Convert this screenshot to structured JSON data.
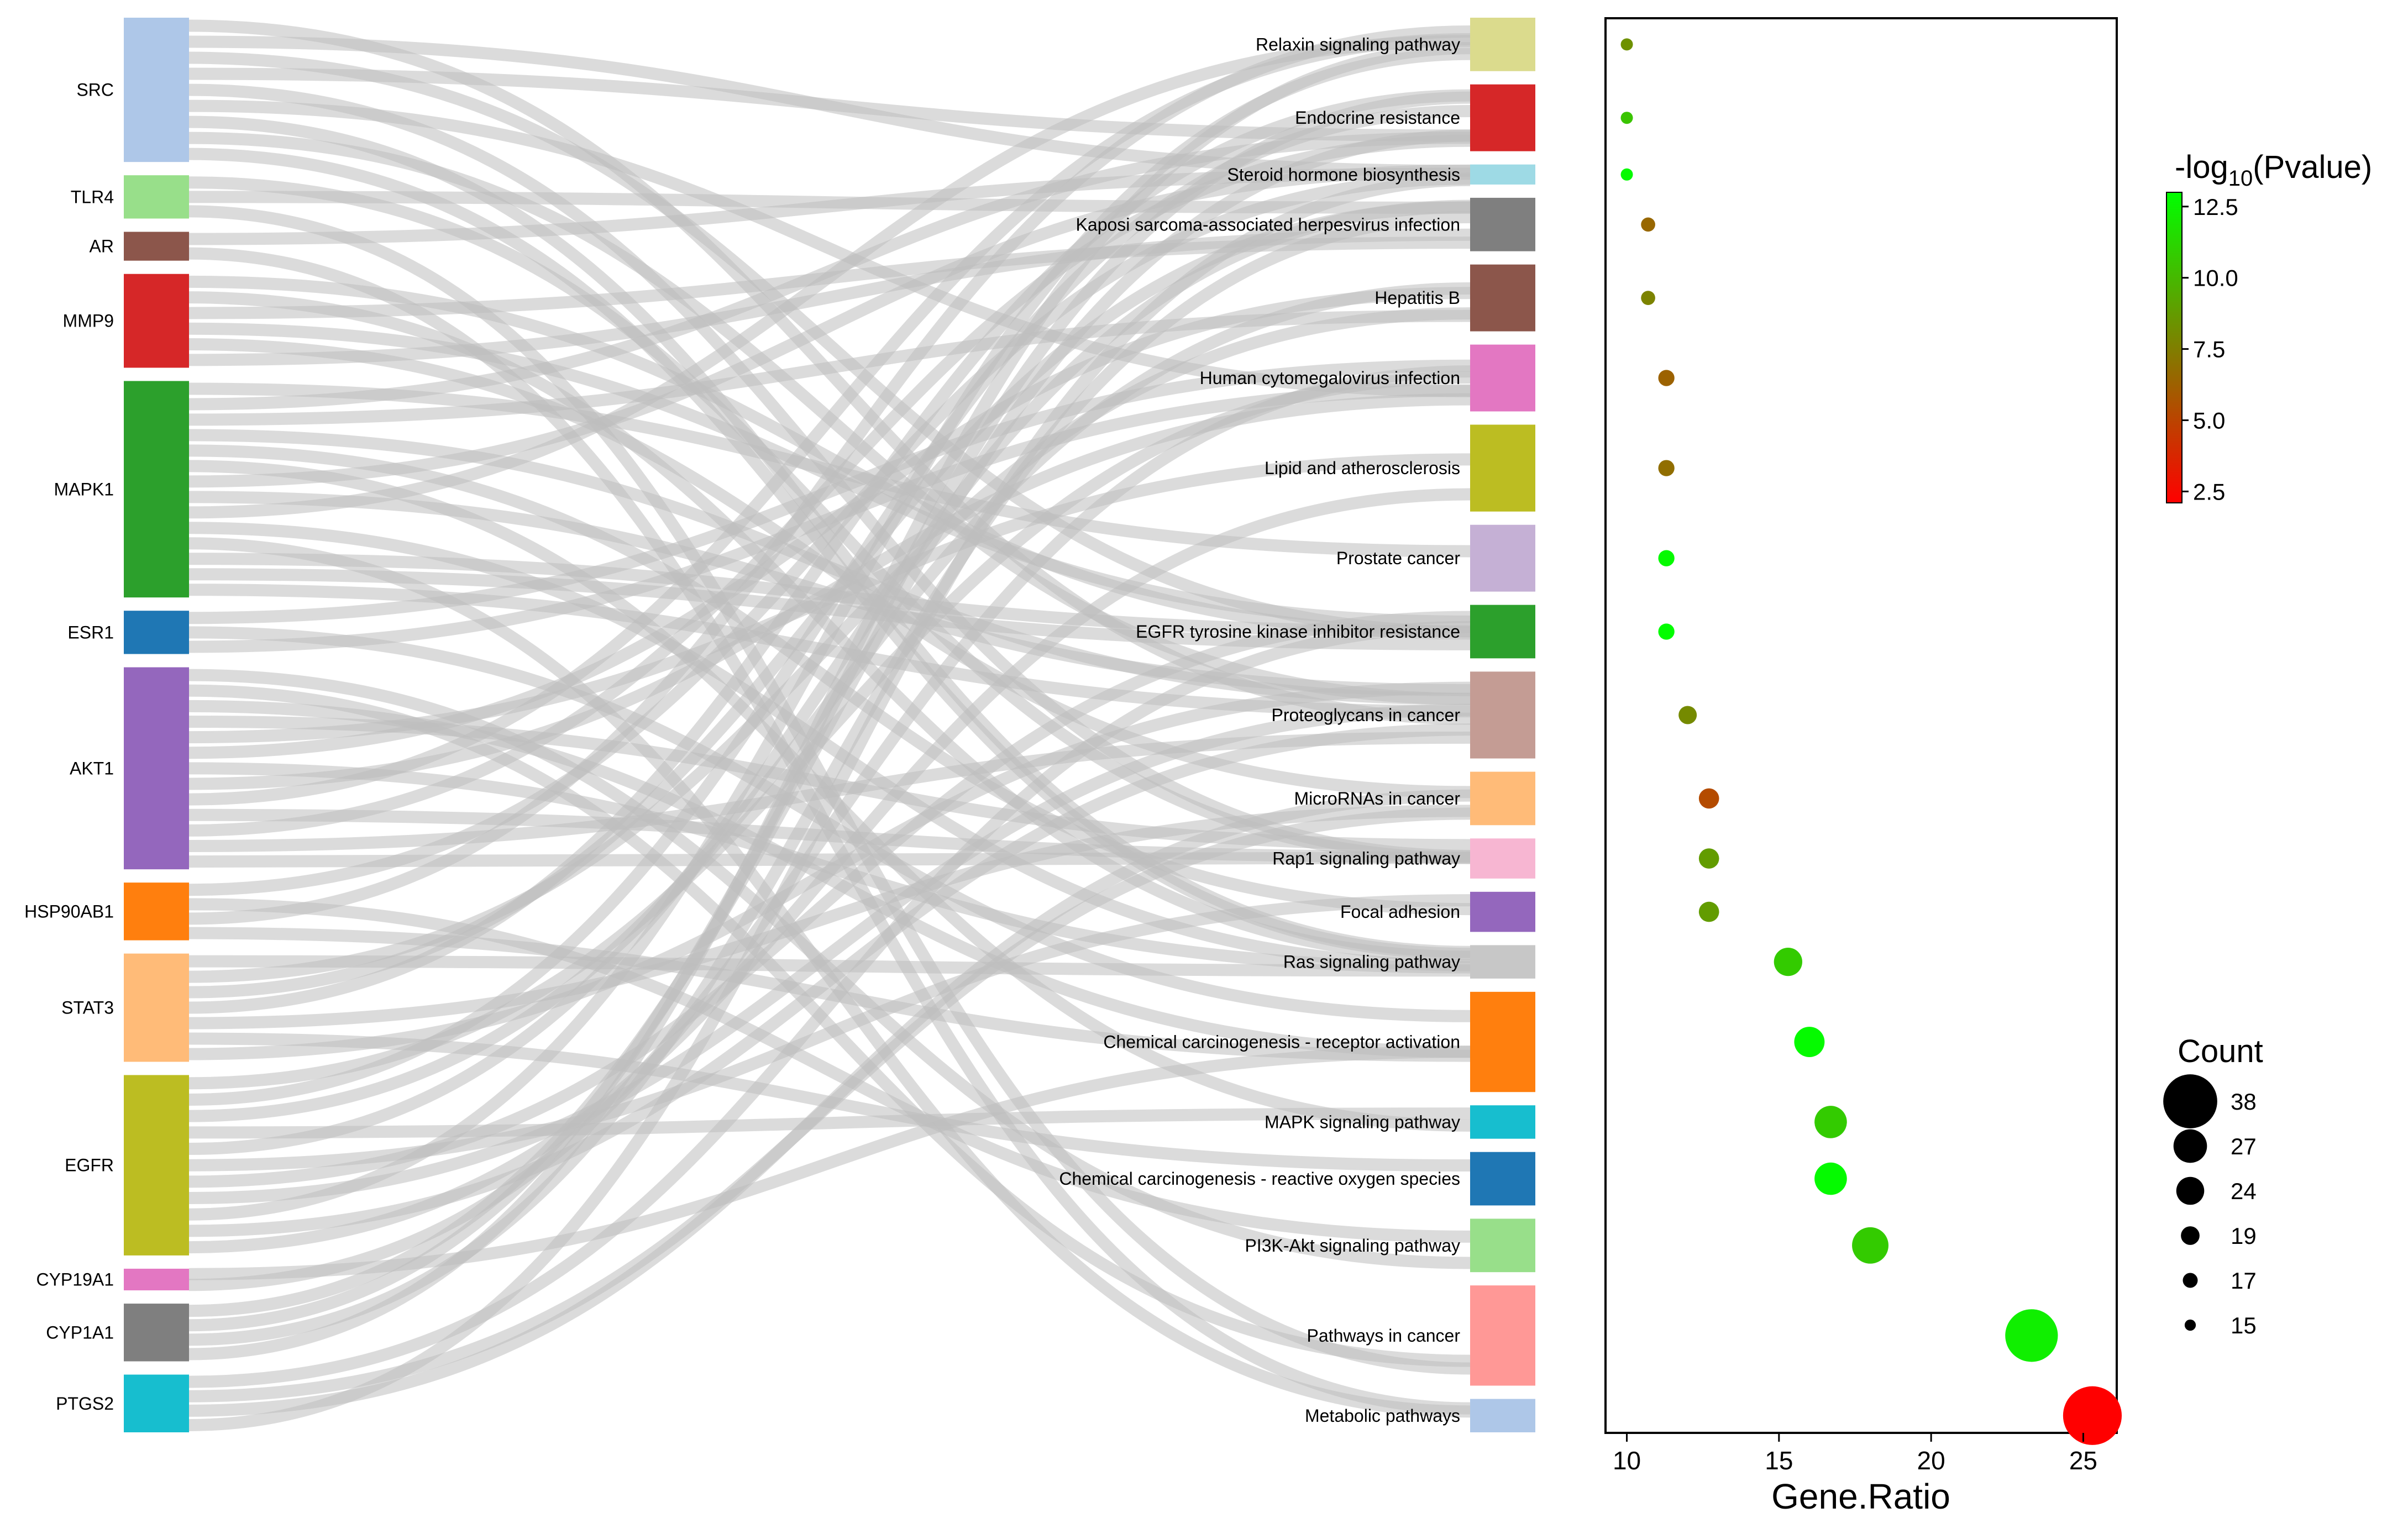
{
  "chart_data": [
    {
      "type": "sankey",
      "targets_are_pathways": true,
      "sources": [
        {
          "name": "SRC",
          "color": "#aec7e8",
          "weight": 20
        },
        {
          "name": "TLR4",
          "color": "#98df8a",
          "weight": 6
        },
        {
          "name": "AR",
          "color": "#8c564b",
          "weight": 4
        },
        {
          "name": "MMP9",
          "color": "#d62728",
          "weight": 13
        },
        {
          "name": "MAPK1",
          "color": "#2ca02c",
          "weight": 30
        },
        {
          "name": "ESR1",
          "color": "#1f77b4",
          "weight": 6
        },
        {
          "name": "AKT1",
          "color": "#9467bd",
          "weight": 28
        },
        {
          "name": "HSP90AB1",
          "color": "#ff7f0e",
          "weight": 8
        },
        {
          "name": "STAT3",
          "color": "#ffbb78",
          "weight": 15
        },
        {
          "name": "EGFR",
          "color": "#bcbd22",
          "weight": 25
        },
        {
          "name": "CYP19A1",
          "color": "#e377c2",
          "weight": 3
        },
        {
          "name": "CYP1A1",
          "color": "#7f7f7f",
          "weight": 8
        },
        {
          "name": "PTGS2",
          "color": "#17becf",
          "weight": 8
        }
      ],
      "targets": [
        {
          "name": "Relaxin signaling pathway",
          "color": "#dbdb8d",
          "weight": 8
        },
        {
          "name": "Endocrine resistance",
          "color": "#d62728",
          "weight": 10
        },
        {
          "name": "Steroid hormone biosynthesis",
          "color": "#9edae5",
          "weight": 3
        },
        {
          "name": "Kaposi sarcoma-associated herpesvirus infection",
          "color": "#7f7f7f",
          "weight": 8
        },
        {
          "name": "Hepatitis B",
          "color": "#8c564b",
          "weight": 10
        },
        {
          "name": "Human cytomegalovirus infection",
          "color": "#e377c2",
          "weight": 10
        },
        {
          "name": "Lipid and atherosclerosis",
          "color": "#bcbd22",
          "weight": 13
        },
        {
          "name": "Prostate cancer",
          "color": "#c5b0d5",
          "weight": 10
        },
        {
          "name": "EGFR tyrosine kinase inhibitor resistance",
          "color": "#2ca02c",
          "weight": 8
        },
        {
          "name": "Proteoglycans in cancer",
          "color": "#c49c94",
          "weight": 13
        },
        {
          "name": "MicroRNAs in cancer",
          "color": "#ffbb78",
          "weight": 8
        },
        {
          "name": "Rap1 signaling pathway",
          "color": "#f7b6d2",
          "weight": 6
        },
        {
          "name": "Focal adhesion",
          "color": "#9467bd",
          "weight": 6
        },
        {
          "name": "Ras signaling pathway",
          "color": "#c7c7c7",
          "weight": 5
        },
        {
          "name": "Chemical carcinogenesis - receptor activation",
          "color": "#ff7f0e",
          "weight": 15
        },
        {
          "name": "MAPK signaling pathway",
          "color": "#17becf",
          "weight": 5
        },
        {
          "name": "Chemical carcinogenesis - reactive oxygen species",
          "color": "#1f77b4",
          "weight": 8
        },
        {
          "name": "PI3K-Akt signaling pathway",
          "color": "#98df8a",
          "weight": 8
        },
        {
          "name": "Pathways in cancer",
          "color": "#ff9896",
          "weight": 15
        },
        {
          "name": "Metabolic pathways",
          "color": "#aec7e8",
          "weight": 5
        }
      ]
    },
    {
      "type": "scatter",
      "xlabel": "Gene.Ratio",
      "ylabel": "",
      "xlim": [
        9.3,
        26.1
      ],
      "xticks": [
        10,
        15,
        20,
        25
      ],
      "points": [
        {
          "pathway": "Relaxin signaling pathway",
          "x": 10.0,
          "count": 15,
          "neglog10p": 8.3
        },
        {
          "pathway": "Endocrine resistance",
          "x": 10.0,
          "count": 15,
          "neglog10p": 10.5
        },
        {
          "pathway": "Steroid hormone biosynthesis",
          "x": 10.0,
          "count": 15,
          "neglog10p": 12.8
        },
        {
          "pathway": "Kaposi sarcoma-associated herpesvirus infection",
          "x": 10.7,
          "count": 16,
          "neglog10p": 6.5
        },
        {
          "pathway": "Hepatitis B",
          "x": 10.7,
          "count": 16,
          "neglog10p": 7.7
        },
        {
          "pathway": "Human cytomegalovirus infection",
          "x": 11.3,
          "count": 17,
          "neglog10p": 6.3
        },
        {
          "pathway": "Lipid and atherosclerosis",
          "x": 11.3,
          "count": 17,
          "neglog10p": 6.8
        },
        {
          "pathway": "Prostate cancer",
          "x": 11.3,
          "count": 17,
          "neglog10p": 12.8
        },
        {
          "pathway": "EGFR tyrosine kinase inhibitor resistance",
          "x": 11.3,
          "count": 17,
          "neglog10p": 12.9
        },
        {
          "pathway": "Proteoglycans in cancer",
          "x": 12.0,
          "count": 18,
          "neglog10p": 8.0
        },
        {
          "pathway": "MicroRNAs in cancer",
          "x": 12.7,
          "count": 19,
          "neglog10p": 5.3
        },
        {
          "pathway": "Rap1 signaling pathway",
          "x": 12.7,
          "count": 19,
          "neglog10p": 8.8
        },
        {
          "pathway": "Focal adhesion",
          "x": 12.7,
          "count": 19,
          "neglog10p": 8.8
        },
        {
          "pathway": "Ras signaling pathway",
          "x": 15.3,
          "count": 23,
          "neglog10p": 10.8
        },
        {
          "pathway": "Chemical carcinogenesis - receptor activation",
          "x": 16.0,
          "count": 24,
          "neglog10p": 12.8
        },
        {
          "pathway": "MAPK signaling pathway",
          "x": 16.7,
          "count": 25,
          "neglog10p": 10.8
        },
        {
          "pathway": "Chemical carcinogenesis - reactive oxygen species",
          "x": 16.7,
          "count": 25,
          "neglog10p": 12.8
        },
        {
          "pathway": "PI3K-Akt signaling pathway",
          "x": 18.0,
          "count": 27,
          "neglog10p": 10.8
        },
        {
          "pathway": "Pathways in cancer",
          "x": 23.3,
          "count": 35,
          "neglog10p": 12.3
        },
        {
          "pathway": "Metabolic pathways",
          "x": 25.3,
          "count": 38,
          "neglog10p": 1.8
        }
      ],
      "colorbar": {
        "title_prefix": "-log",
        "title_sub": "10",
        "title_suffix": "(Pvalue)",
        "range": [
          2.1,
          13.0
        ],
        "ticks": [
          12.5,
          10.0,
          7.5,
          5.0,
          2.5
        ],
        "tick_labels": [
          "12.5",
          "10.0",
          "7.5",
          "5.0",
          "2.5"
        ],
        "colors": {
          "low": "#ff0000",
          "mid": "#7f7f00",
          "high": "#00ff00"
        }
      },
      "size_legend": {
        "title": "Count",
        "entries": [
          38,
          27,
          24,
          19,
          17,
          15
        ],
        "labels": [
          "38",
          "27",
          "24",
          "19",
          "17",
          "15"
        ]
      }
    }
  ]
}
